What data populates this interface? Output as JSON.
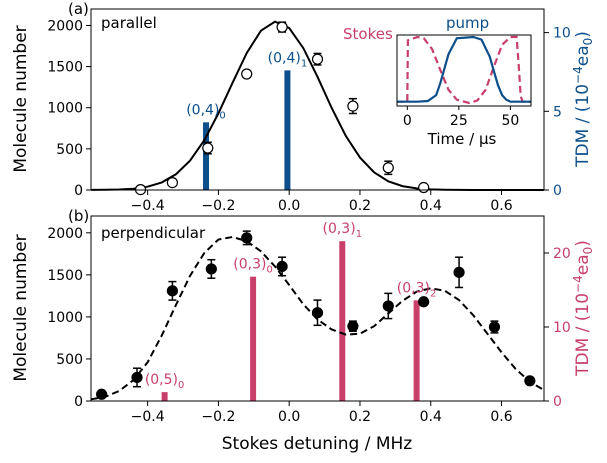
{
  "figure": {
    "shared_xlabel": "Stokes detuning / MHz",
    "colors": {
      "blue": "#0d4f8b",
      "pink": "#c8406a",
      "black": "#000000"
    }
  },
  "chart_data": [
    {
      "type": "scatter",
      "panel_label": "(a)",
      "annotation": "parallel",
      "ylabel": "Molecule number",
      "y2label_main": "TDM / (10",
      "y2label_exp": "−4",
      "y2label_unit": "ea",
      "y2label_sub": "0",
      "y2label_end": ")",
      "xlim": [
        -0.56,
        0.72
      ],
      "ylim": [
        0,
        2200
      ],
      "y2lim": [
        0,
        11.5
      ],
      "x_ticks": [
        -0.4,
        -0.2,
        0.0,
        0.2,
        0.4,
        0.6
      ],
      "x_tick_labels": [
        "−0.4",
        "−0.2",
        "0.0",
        "0.2",
        "0.4",
        "0.6"
      ],
      "y_ticks": [
        0,
        500,
        1000,
        1500,
        2000
      ],
      "y_tick_labels": [
        "0",
        "500",
        "1000",
        "1500",
        "2000"
      ],
      "y2_ticks": [
        0,
        5,
        10
      ],
      "y2_tick_labels": [
        "0",
        "5",
        "10"
      ],
      "points": {
        "marker": "open-circle",
        "x": [
          -0.42,
          -0.33,
          -0.23,
          -0.12,
          -0.02,
          0.08,
          0.18,
          0.28,
          0.38
        ],
        "y": [
          5,
          90,
          510,
          1410,
          1980,
          1590,
          1020,
          270,
          30
        ],
        "yerr": [
          0,
          0,
          70,
          0,
          60,
          70,
          90,
          80,
          0
        ]
      },
      "fit_curve": {
        "style": "solid",
        "x": [
          -0.56,
          -0.52,
          -0.48,
          -0.44,
          -0.4,
          -0.36,
          -0.32,
          -0.28,
          -0.24,
          -0.2,
          -0.16,
          -0.12,
          -0.08,
          -0.04,
          0.0,
          0.04,
          0.08,
          0.12,
          0.16,
          0.2,
          0.24,
          0.28,
          0.32,
          0.36,
          0.4,
          0.44,
          0.48,
          0.52,
          0.56,
          0.6,
          0.64,
          0.68,
          0.72
        ],
        "y": [
          1,
          2,
          6,
          16,
          40,
          92,
          191,
          357,
          605,
          931,
          1304,
          1664,
          1936,
          2047,
          1968,
          1725,
          1376,
          997,
          657,
          394,
          215,
          106,
          48,
          20,
          7,
          2,
          1,
          0,
          0,
          0,
          0,
          0,
          0
        ]
      },
      "bars": [
        {
          "x": -0.235,
          "tdm": 4.3,
          "label": "(0,4)",
          "label_sub": "0"
        },
        {
          "x": -0.005,
          "tdm": 7.6,
          "label": "(0,4)",
          "label_sub": "1"
        }
      ],
      "inset": {
        "stokes_label": "Stokes",
        "pump_label": "pump",
        "xlabel": "Time / μs",
        "x_ticks": [
          0,
          25,
          50
        ],
        "x_tick_labels": [
          "0",
          "25",
          "50"
        ],
        "xlim": [
          -5,
          60
        ],
        "pump_time": [
          -5,
          5,
          10,
          14,
          16,
          20,
          24,
          32,
          36,
          40,
          42,
          44,
          46,
          48,
          50,
          55,
          60
        ],
        "pump_level": [
          0.02,
          0.02,
          0.03,
          0.12,
          0.3,
          0.74,
          0.98,
          1.0,
          0.96,
          0.7,
          0.48,
          0.27,
          0.12,
          0.05,
          0.02,
          0.02,
          0.02
        ],
        "stokes_time": [
          -5,
          0,
          0.3,
          5,
          8,
          12,
          16,
          20,
          24,
          30,
          34,
          38,
          42,
          46,
          50,
          53,
          54,
          55,
          56,
          60
        ],
        "stokes_level": [
          0.02,
          0.02,
          0.95,
          1.0,
          0.98,
          0.82,
          0.5,
          0.2,
          0.05,
          0.0,
          0.04,
          0.2,
          0.55,
          0.88,
          1.0,
          1.0,
          0.6,
          0.1,
          0.02,
          0.02
        ]
      }
    },
    {
      "type": "scatter",
      "panel_label": "(b)",
      "annotation": "perpendicular",
      "ylabel": "Molecule number",
      "y2label_main": "TDM / (10",
      "y2label_exp": "−4",
      "y2label_unit": "ea",
      "y2label_sub": "0",
      "y2label_end": ")",
      "xlim": [
        -0.56,
        0.72
      ],
      "ylim": [
        0,
        2200
      ],
      "y2lim": [
        0,
        25
      ],
      "x_ticks": [
        -0.4,
        -0.2,
        0.0,
        0.2,
        0.4,
        0.6
      ],
      "x_tick_labels": [
        "−0.4",
        "−0.2",
        "0.0",
        "0.2",
        "0.4",
        "0.6"
      ],
      "y_ticks": [
        0,
        500,
        1000,
        1500,
        2000
      ],
      "y_tick_labels": [
        "0",
        "500",
        "1000",
        "1500",
        "2000"
      ],
      "y2_ticks": [
        0,
        10,
        20
      ],
      "y2_tick_labels": [
        "0",
        "10",
        "20"
      ],
      "points": {
        "marker": "filled-circle",
        "x": [
          -0.53,
          -0.43,
          -0.33,
          -0.22,
          -0.12,
          -0.02,
          0.08,
          0.18,
          0.28,
          0.38,
          0.48,
          0.58,
          0.68
        ],
        "y": [
          80,
          280,
          1310,
          1570,
          1940,
          1600,
          1050,
          890,
          1130,
          1180,
          1530,
          880,
          240
        ],
        "yerr": [
          0,
          110,
          110,
          110,
          80,
          110,
          150,
          60,
          150,
          0,
          180,
          70,
          0
        ]
      },
      "fit_curve": {
        "style": "dashed",
        "x": [
          -0.56,
          -0.52,
          -0.48,
          -0.44,
          -0.4,
          -0.36,
          -0.32,
          -0.28,
          -0.24,
          -0.2,
          -0.16,
          -0.12,
          -0.08,
          -0.04,
          0.0,
          0.04,
          0.08,
          0.12,
          0.16,
          0.2,
          0.24,
          0.28,
          0.32,
          0.36,
          0.4,
          0.44,
          0.48,
          0.52,
          0.56,
          0.6,
          0.64,
          0.68,
          0.72
        ],
        "y": [
          20,
          50,
          120,
          250,
          460,
          780,
          1140,
          1490,
          1760,
          1920,
          1950,
          1900,
          1780,
          1600,
          1380,
          1150,
          970,
          850,
          790,
          800,
          890,
          1040,
          1190,
          1300,
          1340,
          1310,
          1200,
          1020,
          800,
          580,
          380,
          230,
          130
        ]
      },
      "bars": [
        {
          "x": -0.352,
          "tdm": 1.2,
          "label": "(0,5)",
          "label_sub": "0"
        },
        {
          "x": -0.102,
          "tdm": 16.8,
          "label": "(0,3)",
          "label_sub": "0"
        },
        {
          "x": 0.15,
          "tdm": 21.6,
          "label": "(0,3)",
          "label_sub": "1"
        },
        {
          "x": 0.36,
          "tdm": 13.6,
          "label": "(0,3)",
          "label_sub": "2"
        }
      ]
    }
  ]
}
